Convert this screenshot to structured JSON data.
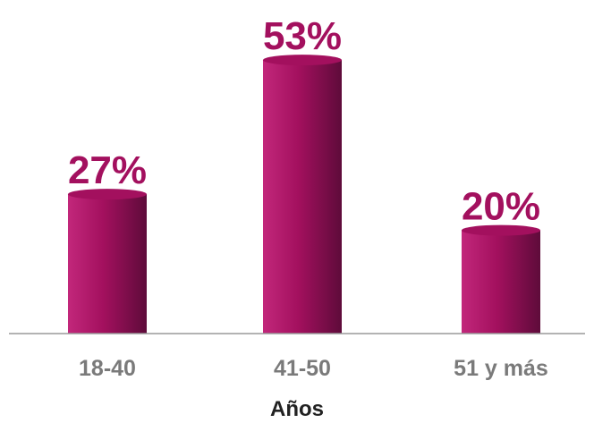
{
  "chart_data": {
    "type": "bar",
    "categories": [
      "18-40",
      "41-50",
      "51 y más"
    ],
    "values": [
      27,
      53,
      20
    ],
    "value_labels": [
      "27%",
      "53%",
      "20%"
    ],
    "title": "",
    "xlabel": "Años",
    "ylabel": "",
    "ylim": [
      0,
      60
    ],
    "grid": false,
    "legend": "none",
    "bar_style": "cylinder",
    "colors": {
      "bar": "#a3105e",
      "bar_dark": "#5e0b3a",
      "bar_light": "#c2277b",
      "value_label": "#a3105e",
      "tick_label": "#7a7a7a",
      "axis_title": "#222222",
      "baseline": "#9a9a9a"
    }
  }
}
